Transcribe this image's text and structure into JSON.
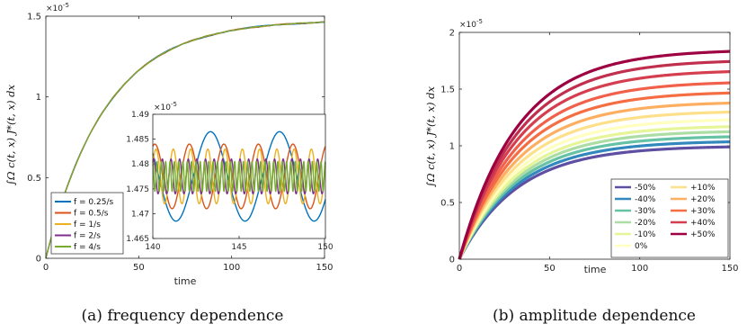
{
  "chart_data": [
    {
      "type": "line",
      "caption": "(a) frequency dependence",
      "xlabel": "time",
      "ylabel": "∫Ω c(t, x) J*(t, x) dx",
      "y_exponent": "×10",
      "y_exponent_power": "-5",
      "xlim": [
        0,
        150
      ],
      "ylim": [
        0,
        1.5
      ],
      "x_ticks": [
        "0",
        "50",
        "100",
        "150"
      ],
      "y_ticks": [
        "0",
        "0.5",
        "1",
        "1.5"
      ],
      "steady_state": 1.4775,
      "rate": 0.031,
      "series": [
        {
          "name": "f = 0.25/s",
          "freq": 0.25,
          "amplitude": 0.009,
          "color": "#0072BD"
        },
        {
          "name": "f = 0.5/s",
          "freq": 0.5,
          "amplitude": 0.0065,
          "color": "#D95319"
        },
        {
          "name": "f = 1/s",
          "freq": 1,
          "amplitude": 0.0055,
          "color": "#EDB120"
        },
        {
          "name": "f = 2/s",
          "freq": 2,
          "amplitude": 0.0035,
          "color": "#7E2F8E"
        },
        {
          "name": "f = 4/s",
          "freq": 4,
          "amplitude": 0.003,
          "color": "#77AC30"
        }
      ],
      "inset": {
        "xlim": [
          140,
          150
        ],
        "ylim": [
          1.465,
          1.49
        ],
        "x_ticks": [
          "140",
          "145",
          "150"
        ],
        "y_ticks": [
          "1.465",
          "1.47",
          "1.475",
          "1.48",
          "1.485",
          "1.49"
        ],
        "y_exponent": "×10",
        "y_exponent_power": "-5"
      }
    },
    {
      "type": "line",
      "caption": "(b) amplitude dependence",
      "xlabel": "time",
      "ylabel": "∫Ω c(t, x) J*(t, x) dx",
      "y_exponent": "×10",
      "y_exponent_power": "-5",
      "xlim": [
        0,
        150
      ],
      "ylim": [
        0,
        2
      ],
      "x_ticks": [
        "0",
        "50",
        "100",
        "150"
      ],
      "y_ticks": [
        "0",
        "0.5",
        "1",
        "1.5",
        "2"
      ],
      "rate": 0.031,
      "legend_position": "bottom-right",
      "series": [
        {
          "name": "-50%",
          "steady": 1.0,
          "color": "#5E4FA2"
        },
        {
          "name": "-40%",
          "steady": 1.045,
          "color": "#3288BD"
        },
        {
          "name": "-30%",
          "steady": 1.09,
          "color": "#66C2A5"
        },
        {
          "name": "-20%",
          "steady": 1.135,
          "color": "#ABDDA4"
        },
        {
          "name": "-10%",
          "steady": 1.18,
          "color": "#E6F598"
        },
        {
          "name": "0%",
          "steady": 1.24,
          "color": "#FFFFBF"
        },
        {
          "name": "+10%",
          "steady": 1.31,
          "color": "#FEE08B"
        },
        {
          "name": "+20%",
          "steady": 1.39,
          "color": "#FDAE61"
        },
        {
          "name": "+30%",
          "steady": 1.48,
          "color": "#F46D43"
        },
        {
          "name": "+40%",
          "steady": 1.57,
          "color": "#F0604A"
        },
        {
          "name": "+40%",
          "steady": 1.67,
          "color": "#D53E4F"
        },
        {
          "name": "+50%",
          "steady": 1.76,
          "color": "#C0304E"
        },
        {
          "name": "+50%",
          "steady": 1.85,
          "color": "#9E0142"
        }
      ],
      "legend_left": [
        {
          "name": "-50%",
          "color": "#5E4FA2"
        },
        {
          "name": "-40%",
          "color": "#3288BD"
        },
        {
          "name": "-30%",
          "color": "#66C2A5"
        },
        {
          "name": "-20%",
          "color": "#ABDDA4"
        },
        {
          "name": "-10%",
          "color": "#E6F598"
        },
        {
          "name": "0%",
          "color": "#FFFFBF"
        }
      ],
      "legend_right": [
        {
          "name": "+10%",
          "color": "#FEE08B"
        },
        {
          "name": "+20%",
          "color": "#FDAE61"
        },
        {
          "name": "+30%",
          "color": "#F46D43"
        },
        {
          "name": "+40%",
          "color": "#D53E4F"
        },
        {
          "name": "+50%",
          "color": "#9E0142"
        }
      ]
    }
  ]
}
